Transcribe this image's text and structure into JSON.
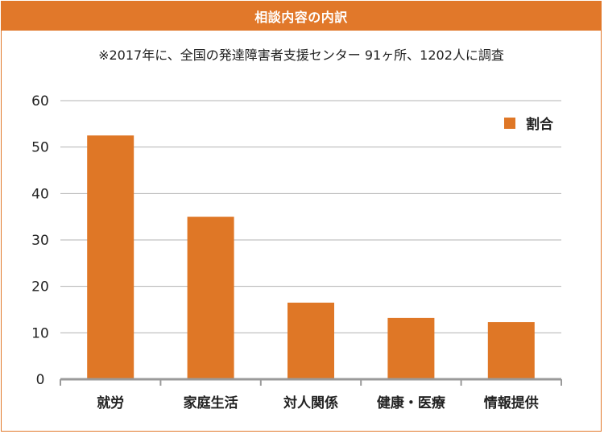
{
  "header": {
    "title": "相談内容の内訳"
  },
  "note": "※2017年に、全国の発達障害者支援センター 91ヶ所、1202人に調査",
  "colors": {
    "accent": "#e1782a",
    "bar": "#df7726",
    "grid": "#b3b3b3",
    "axis": "#9a9a9a"
  },
  "chart_data": {
    "type": "bar",
    "title": "相談内容の内訳",
    "subtitle": "※2017年に、全国の発達障害者支援センター 91ヶ所、1202人に調査",
    "categories": [
      "就労",
      "家庭生活",
      "対人関係",
      "健康・医療",
      "情報提供"
    ],
    "series": [
      {
        "name": "割合",
        "values": [
          52.5,
          35.0,
          16.5,
          13.2,
          12.3
        ]
      }
    ],
    "xlabel": "",
    "ylabel": "",
    "ylim": [
      0,
      60
    ],
    "yticks": [
      0,
      10,
      20,
      30,
      40,
      50,
      60
    ],
    "grid": true,
    "legend": "top-right"
  }
}
